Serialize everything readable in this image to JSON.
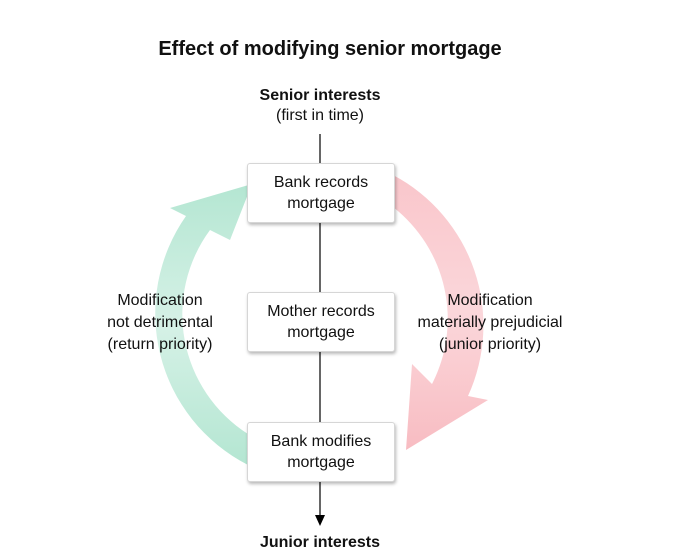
{
  "title": "Effect of modifying senior mortgage",
  "top_label": {
    "main": "Senior interests",
    "sub": "(first in time)"
  },
  "bottom_label": "Junior interests",
  "boxes": {
    "top": "Bank records mortgage",
    "middle": "Mother records mortgage",
    "bottom": "Bank modifies mortgage"
  },
  "left_arrow_label": "Modification\nnot detrimental\n(return priority)",
  "right_arrow_label": "Modification\nmaterially prejudicial\n(junior priority)",
  "colors": {
    "left_arrow": "#b4e6d2",
    "right_arrow": "#f8bcc2",
    "axis_line": "#000000",
    "box_border": "#d6d6d6"
  }
}
